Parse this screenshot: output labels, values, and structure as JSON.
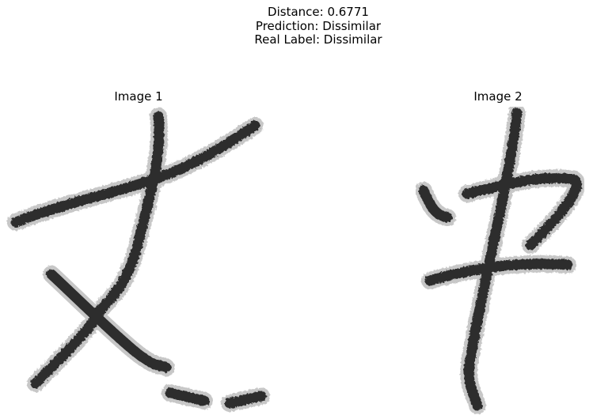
{
  "figure": {
    "distance_line": "Distance: 0.6771",
    "prediction_line": "Prediction: Dissimilar",
    "label_line": "Real Label: Dissimilar"
  },
  "panels": [
    {
      "title": "Image 1",
      "content": "handwritten character"
    },
    {
      "title": "Image 2",
      "content": "handwritten character"
    }
  ],
  "colors": {
    "ink": "#1c1c1c",
    "ink_mid": "#4a4a4a",
    "ink_light": "#8a8a8a",
    "background": "#ffffff"
  }
}
